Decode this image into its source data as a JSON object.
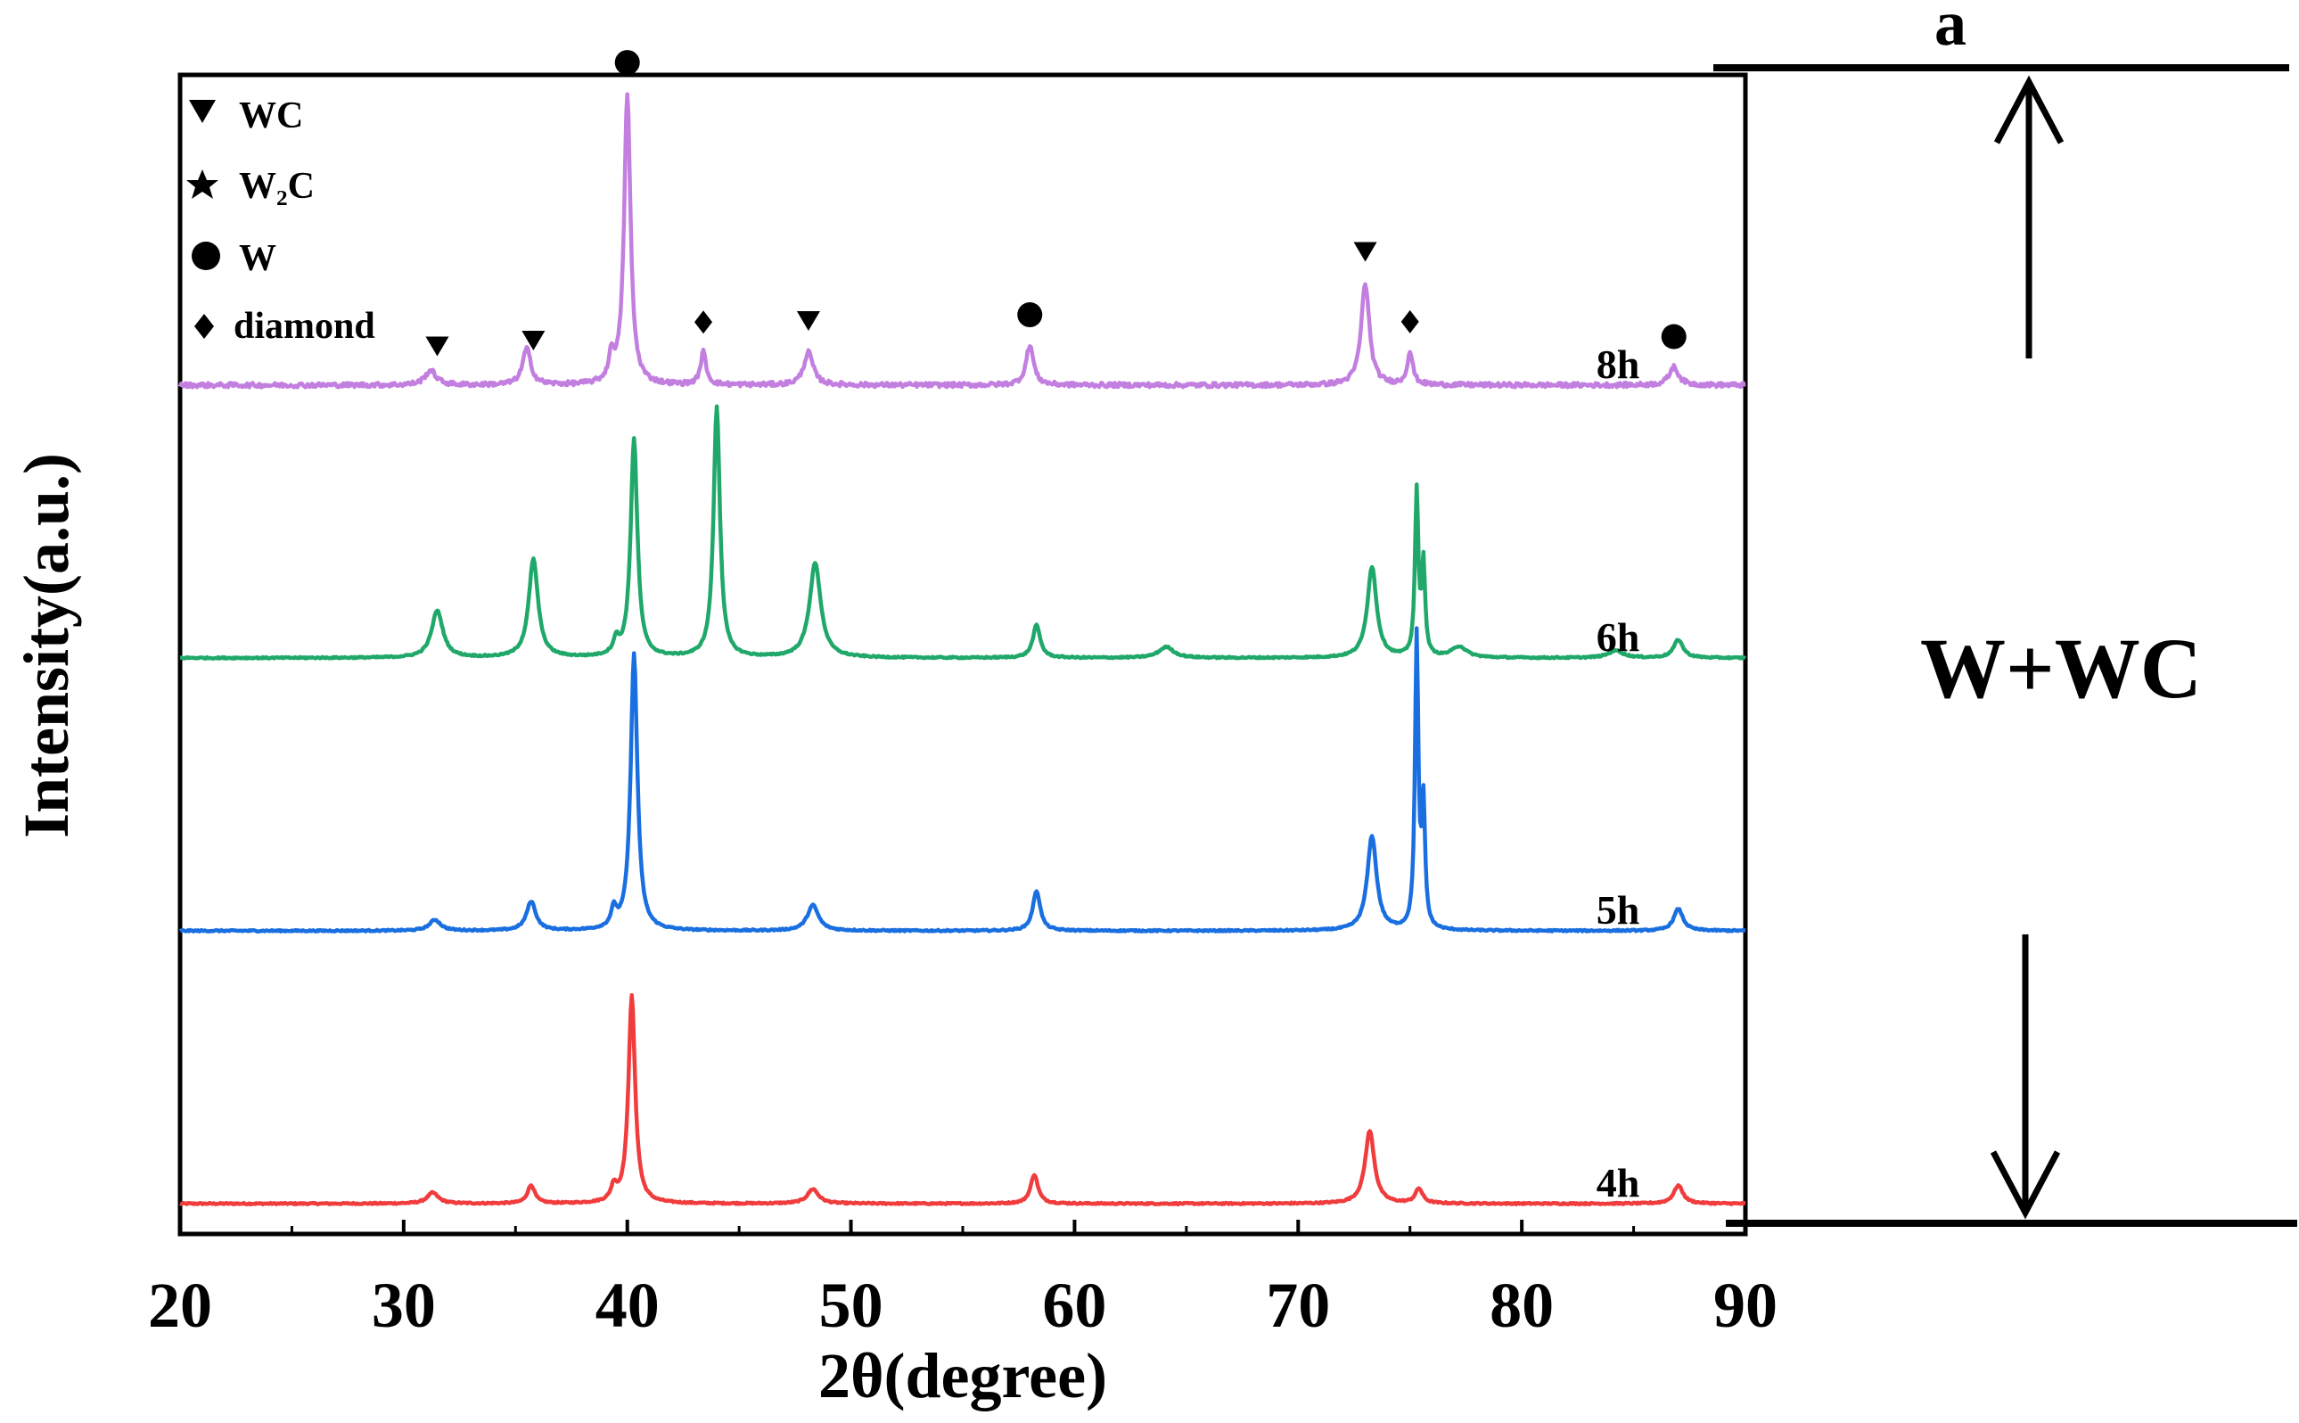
{
  "chart_data": {
    "type": "line",
    "title": "",
    "panel_label": "a",
    "xlabel": "2θ(degree)",
    "ylabel": "Intensity(a.u.)",
    "xlim": [
      20,
      90
    ],
    "xticks": [
      20,
      30,
      40,
      50,
      60,
      70,
      80,
      90
    ],
    "xtick_labels": [
      "20",
      "30",
      "40",
      "50",
      "60",
      "70",
      "80",
      "90"
    ],
    "y_ticks_shown": false,
    "legend": {
      "placement": "top-left",
      "entries": [
        {
          "symbol": "down-triangle",
          "label": "WC"
        },
        {
          "symbol": "star",
          "label": "W₂C"
        },
        {
          "symbol": "circle",
          "label": "W"
        },
        {
          "symbol": "diamond",
          "label": "diamond"
        }
      ]
    },
    "series": [
      {
        "name": "4h",
        "color": "#f03c3c",
        "baseline": 0.0,
        "peaks": [
          [
            31.3,
            0.03,
            0.3
          ],
          [
            35.7,
            0.05,
            0.2
          ],
          [
            39.4,
            0.04,
            0.15
          ],
          [
            40.2,
            0.57,
            0.18
          ],
          [
            48.3,
            0.04,
            0.3
          ],
          [
            58.2,
            0.08,
            0.2
          ],
          [
            73.2,
            0.2,
            0.25
          ],
          [
            75.4,
            0.04,
            0.2
          ],
          [
            87.0,
            0.05,
            0.25
          ]
        ]
      },
      {
        "name": "5h",
        "color": "#1a6fe0",
        "baseline": 0.75,
        "peaks": [
          [
            31.4,
            0.03,
            0.3
          ],
          [
            35.7,
            0.08,
            0.25
          ],
          [
            39.4,
            0.05,
            0.15
          ],
          [
            40.3,
            0.76,
            0.18
          ],
          [
            48.3,
            0.07,
            0.3
          ],
          [
            58.3,
            0.11,
            0.2
          ],
          [
            73.3,
            0.26,
            0.25
          ],
          [
            75.3,
            0.8,
            0.09
          ],
          [
            75.6,
            0.33,
            0.09
          ],
          [
            87.0,
            0.06,
            0.25
          ]
        ]
      },
      {
        "name": "6h",
        "color": "#20a86a",
        "baseline": 1.5,
        "peaks": [
          [
            31.5,
            0.13,
            0.3
          ],
          [
            35.8,
            0.27,
            0.25
          ],
          [
            39.5,
            0.04,
            0.15
          ],
          [
            40.3,
            0.6,
            0.18
          ],
          [
            44.0,
            0.69,
            0.17
          ],
          [
            48.4,
            0.26,
            0.3
          ],
          [
            58.3,
            0.09,
            0.2
          ],
          [
            64.1,
            0.03,
            0.4
          ],
          [
            73.3,
            0.25,
            0.25
          ],
          [
            75.3,
            0.45,
            0.09
          ],
          [
            75.6,
            0.25,
            0.09
          ],
          [
            77.2,
            0.03,
            0.4
          ],
          [
            84.2,
            0.02,
            0.4
          ],
          [
            87.0,
            0.05,
            0.25
          ]
        ]
      },
      {
        "name": "8h",
        "color": "#c27fe0",
        "baseline": 2.25,
        "peaks": [
          [
            31.2,
            0.04,
            0.3
          ],
          [
            35.5,
            0.1,
            0.22
          ],
          [
            39.3,
            0.07,
            0.15
          ],
          [
            40.0,
            0.8,
            0.17
          ],
          [
            43.4,
            0.09,
            0.15
          ],
          [
            48.1,
            0.09,
            0.25
          ],
          [
            58.0,
            0.11,
            0.2
          ],
          [
            73.0,
            0.28,
            0.22
          ],
          [
            75.0,
            0.09,
            0.15
          ],
          [
            86.8,
            0.05,
            0.25
          ]
        ]
      }
    ],
    "peak_markers_8h": [
      {
        "x": 31.5,
        "symbol": "down-triangle",
        "phase": "WC"
      },
      {
        "x": 35.8,
        "symbol": "down-triangle",
        "phase": "WC"
      },
      {
        "x": 40.0,
        "symbol": "circle",
        "phase": "W"
      },
      {
        "x": 43.4,
        "symbol": "diamond",
        "phase": "diamond"
      },
      {
        "x": 48.1,
        "symbol": "down-triangle",
        "phase": "WC"
      },
      {
        "x": 58.0,
        "symbol": "circle",
        "phase": "W"
      },
      {
        "x": 73.0,
        "symbol": "down-triangle",
        "phase": "WC"
      },
      {
        "x": 75.0,
        "symbol": "diamond",
        "phase": "diamond"
      },
      {
        "x": 86.8,
        "symbol": "circle",
        "phase": "W"
      }
    ],
    "annotation": {
      "text": "W+WC",
      "arrows": [
        "up",
        "down"
      ]
    }
  }
}
